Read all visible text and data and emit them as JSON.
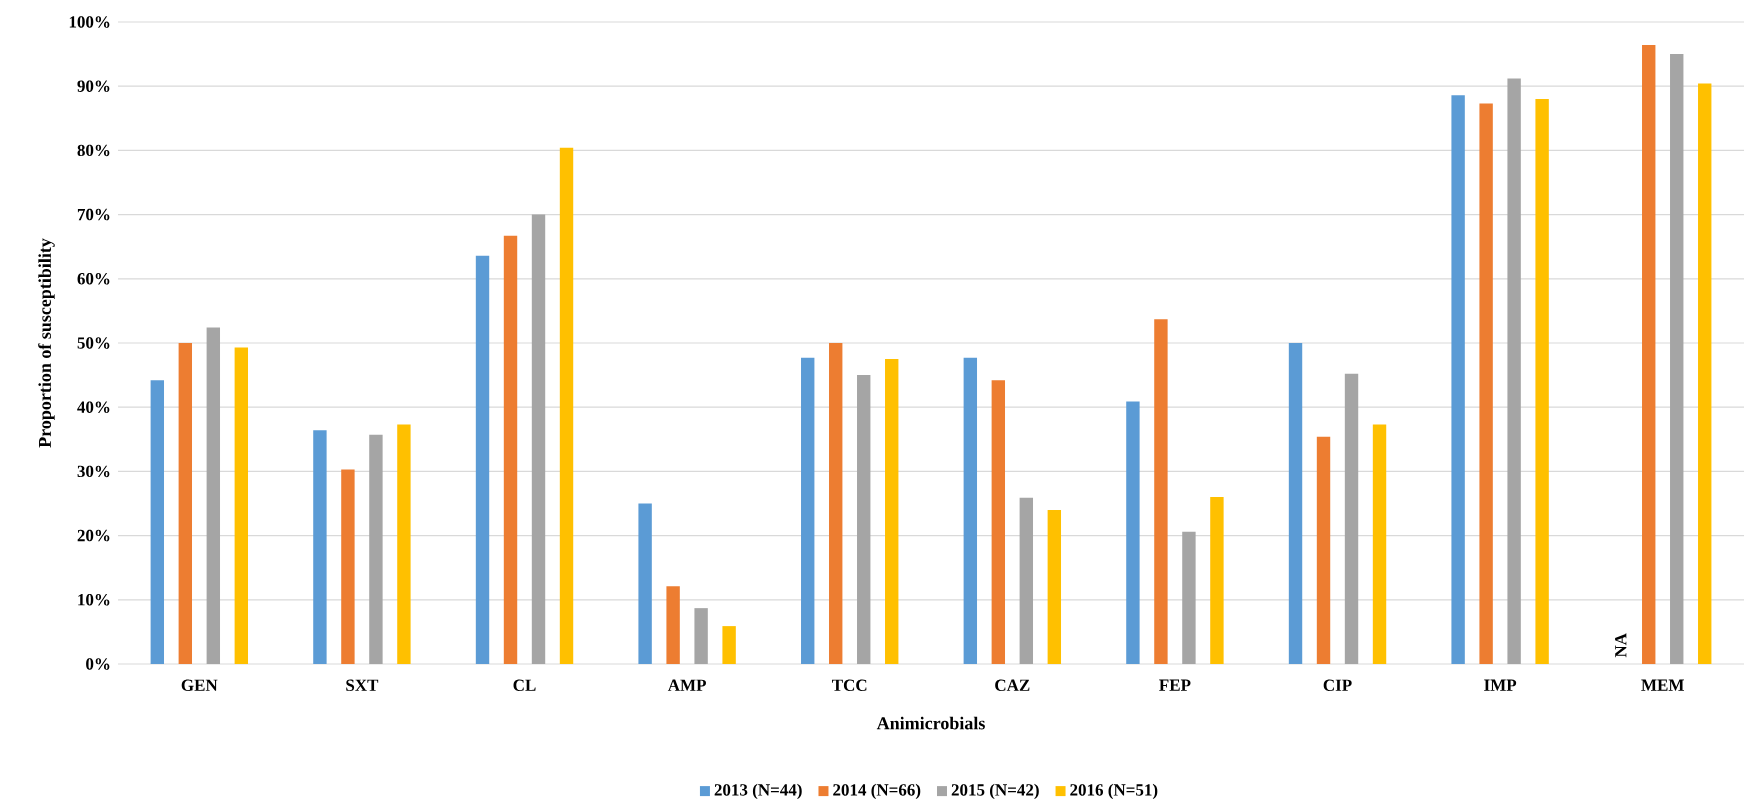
{
  "chart_data": {
    "type": "bar",
    "xlabel": "Animicrobials",
    "ylabel": "Proportion of susceptibility",
    "categories": [
      "GEN",
      "SXT",
      "CL",
      "AMP",
      "TCC",
      "CAZ",
      "FEP",
      "CIP",
      "IMP",
      "MEM"
    ],
    "series": [
      {
        "name": "2013 (N=44)",
        "color": "#5b9bd5",
        "values": [
          44.2,
          36.4,
          63.6,
          25.0,
          47.7,
          47.7,
          40.9,
          50.0,
          88.6,
          null
        ]
      },
      {
        "name": "2014 (N=66)",
        "color": "#ed7d31",
        "values": [
          50.0,
          30.3,
          66.7,
          12.1,
          50.0,
          44.2,
          53.7,
          35.4,
          87.3,
          96.4
        ]
      },
      {
        "name": "2015 (N=42)",
        "color": "#a5a5a5",
        "values": [
          52.4,
          35.7,
          70.0,
          8.7,
          45.0,
          25.9,
          20.6,
          45.2,
          91.2,
          95.0
        ]
      },
      {
        "name": "2016 (N=51)",
        "color": "#ffc000",
        "values": [
          49.3,
          37.3,
          80.4,
          5.9,
          47.5,
          24.0,
          26.0,
          37.3,
          88.0,
          90.4
        ]
      }
    ],
    "ylim": [
      0,
      100
    ],
    "yticks": [
      {
        "value": 0,
        "label": "0%"
      },
      {
        "value": 10,
        "label": "10%"
      },
      {
        "value": 20,
        "label": "20%"
      },
      {
        "value": 30,
        "label": "30%"
      },
      {
        "value": 40,
        "label": "40%"
      },
      {
        "value": 50,
        "label": "50%"
      },
      {
        "value": 60,
        "label": "60%"
      },
      {
        "value": 70,
        "label": "70%"
      },
      {
        "value": 80,
        "label": "80%"
      },
      {
        "value": 90,
        "label": "90%"
      },
      {
        "value": 100,
        "label": "100%"
      }
    ],
    "annotations": [
      "NA"
    ],
    "grid": "y",
    "legend": "bottom"
  }
}
